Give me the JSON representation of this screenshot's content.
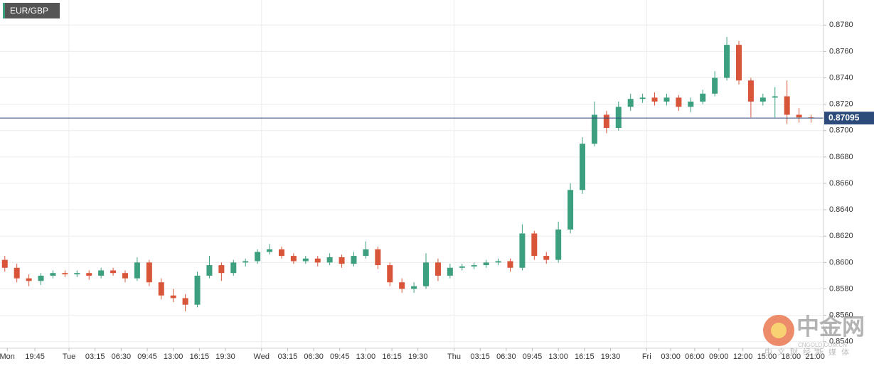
{
  "chart_data": {
    "type": "candlestick",
    "symbol": "EUR/GBP",
    "x": [
      16,
      17.5,
      19,
      20.5,
      22,
      23.5,
      25,
      26.5,
      28,
      29.5,
      31,
      32.5,
      34,
      35.5,
      37,
      38.5,
      40,
      41.5,
      43,
      44.5,
      46,
      47.5,
      49,
      50.5,
      52,
      53.5,
      55,
      56.5,
      58,
      59.5,
      61,
      62.5,
      64,
      65.5,
      67,
      68.5,
      70,
      71.5,
      73,
      74.5,
      76,
      77.5,
      79,
      80.5,
      82,
      83.5,
      85,
      86.5,
      88,
      89.5,
      91,
      92.5,
      94,
      95.5,
      97,
      98.5,
      100,
      101.5,
      103,
      104.5,
      106,
      107.5,
      109,
      110.5,
      112,
      113.5,
      115,
      116.5
    ],
    "open": [
      0.8602,
      0.8596,
      0.8588,
      0.8586,
      0.859,
      0.8592,
      0.8591,
      0.8592,
      0.859,
      0.8594,
      0.8592,
      0.8588,
      0.86,
      0.8585,
      0.8575,
      0.8573,
      0.8568,
      0.859,
      0.8598,
      0.8592,
      0.86,
      0.8601,
      0.8608,
      0.861,
      0.8605,
      0.8601,
      0.8603,
      0.86,
      0.8604,
      0.8599,
      0.8605,
      0.861,
      0.8598,
      0.8585,
      0.858,
      0.8582,
      0.86,
      0.859,
      0.8596,
      0.8597,
      0.8598,
      0.86,
      0.8601,
      0.8596,
      0.8622,
      0.8605,
      0.8602,
      0.8625,
      0.8655,
      0.869,
      0.8712,
      0.8702,
      0.8718,
      0.8724,
      0.8725,
      0.8722,
      0.8725,
      0.8718,
      0.8722,
      0.8728,
      0.874,
      0.8765,
      0.8738,
      0.8722,
      0.8725,
      0.8726,
      0.8712,
      0.871
    ],
    "high": [
      0.8605,
      0.8599,
      0.8591,
      0.8592,
      0.8594,
      0.8594,
      0.8594,
      0.8594,
      0.8596,
      0.8596,
      0.8594,
      0.8604,
      0.8602,
      0.8588,
      0.858,
      0.8576,
      0.8593,
      0.8605,
      0.86,
      0.8602,
      0.8603,
      0.861,
      0.8614,
      0.8612,
      0.8607,
      0.8605,
      0.8605,
      0.8607,
      0.8606,
      0.8608,
      0.8616,
      0.8612,
      0.86,
      0.8588,
      0.8585,
      0.8607,
      0.8603,
      0.8599,
      0.8599,
      0.86,
      0.8602,
      0.8603,
      0.8603,
      0.8629,
      0.8624,
      0.8608,
      0.8631,
      0.866,
      0.8695,
      0.8722,
      0.8715,
      0.8722,
      0.8728,
      0.8728,
      0.8729,
      0.8728,
      0.8727,
      0.8725,
      0.8731,
      0.8745,
      0.8771,
      0.8768,
      0.874,
      0.8728,
      0.8733,
      0.8738,
      0.8717,
      0.8712
    ],
    "low": [
      0.8593,
      0.8585,
      0.8582,
      0.8583,
      0.8588,
      0.8589,
      0.8589,
      0.8587,
      0.8588,
      0.859,
      0.8585,
      0.8586,
      0.8582,
      0.8572,
      0.857,
      0.8563,
      0.8566,
      0.8588,
      0.8586,
      0.859,
      0.8597,
      0.8599,
      0.8606,
      0.8603,
      0.8599,
      0.8599,
      0.8597,
      0.8598,
      0.8596,
      0.8597,
      0.8603,
      0.8595,
      0.8582,
      0.8577,
      0.8577,
      0.858,
      0.8586,
      0.8588,
      0.8594,
      0.8595,
      0.8596,
      0.8598,
      0.8593,
      0.8594,
      0.8602,
      0.8599,
      0.86,
      0.8622,
      0.8652,
      0.8688,
      0.8698,
      0.87,
      0.8715,
      0.8721,
      0.8719,
      0.8719,
      0.8715,
      0.8714,
      0.872,
      0.8726,
      0.8738,
      0.8735,
      0.871,
      0.8719,
      0.871,
      0.8705,
      0.8706,
      0.8706
    ],
    "close": [
      0.8596,
      0.8588,
      0.8586,
      0.859,
      0.8592,
      0.8591,
      0.8592,
      0.859,
      0.8594,
      0.8592,
      0.8588,
      0.86,
      0.8585,
      0.8575,
      0.8573,
      0.8568,
      0.859,
      0.8598,
      0.8592,
      0.86,
      0.8601,
      0.8608,
      0.861,
      0.8605,
      0.8601,
      0.8603,
      0.86,
      0.8604,
      0.8599,
      0.8605,
      0.861,
      0.8598,
      0.8585,
      0.858,
      0.8582,
      0.86,
      0.859,
      0.8596,
      0.8597,
      0.8598,
      0.86,
      0.8601,
      0.8596,
      0.8622,
      0.8605,
      0.8602,
      0.8625,
      0.8655,
      0.869,
      0.8712,
      0.8702,
      0.8718,
      0.8724,
      0.8725,
      0.8722,
      0.8725,
      0.8718,
      0.8722,
      0.8728,
      0.874,
      0.8765,
      0.8738,
      0.8722,
      0.8725,
      0.8726,
      0.8712,
      0.871,
      0.87095
    ],
    "up_color": "#3c9f7f",
    "down_color": "#d9553a",
    "xlim": [
      15.4,
      118.05
    ],
    "xticks": [
      {
        "value": 16.3,
        "label": "Mon"
      },
      {
        "value": 19.75,
        "label": "19:45"
      },
      {
        "value": 24,
        "label": "Tue"
      },
      {
        "value": 27.25,
        "label": "03:15"
      },
      {
        "value": 30.5,
        "label": "06:30"
      },
      {
        "value": 33.75,
        "label": "09:45"
      },
      {
        "value": 37,
        "label": "13:00"
      },
      {
        "value": 40.25,
        "label": "16:15"
      },
      {
        "value": 43.5,
        "label": "19:30"
      },
      {
        "value": 48,
        "label": "Wed"
      },
      {
        "value": 51.25,
        "label": "03:15"
      },
      {
        "value": 54.5,
        "label": "06:30"
      },
      {
        "value": 57.75,
        "label": "09:45"
      },
      {
        "value": 61,
        "label": "13:00"
      },
      {
        "value": 64.25,
        "label": "16:15"
      },
      {
        "value": 67.5,
        "label": "19:30"
      },
      {
        "value": 72,
        "label": "Thu"
      },
      {
        "value": 75.25,
        "label": "03:15"
      },
      {
        "value": 78.5,
        "label": "06:30"
      },
      {
        "value": 81.75,
        "label": "09:45"
      },
      {
        "value": 85,
        "label": "13:00"
      },
      {
        "value": 88.25,
        "label": "16:15"
      },
      {
        "value": 91.5,
        "label": "19:30"
      },
      {
        "value": 96,
        "label": "Fri"
      },
      {
        "value": 99,
        "label": "03:00"
      },
      {
        "value": 102,
        "label": "06:00"
      },
      {
        "value": 105,
        "label": "09:00"
      },
      {
        "value": 108,
        "label": "12:00"
      },
      {
        "value": 111,
        "label": "15:00"
      },
      {
        "value": 114,
        "label": "18:00"
      },
      {
        "value": 117,
        "label": "21:00"
      }
    ],
    "ylim": [
      0.8535,
      0.8799
    ],
    "yticks": [
      {
        "value": 0.854,
        "label": "0.8540"
      },
      {
        "value": 0.856,
        "label": "0.8560"
      },
      {
        "value": 0.858,
        "label": "0.8580"
      },
      {
        "value": 0.86,
        "label": "0.8600"
      },
      {
        "value": 0.862,
        "label": "0.8620"
      },
      {
        "value": 0.864,
        "label": "0.8640"
      },
      {
        "value": 0.866,
        "label": "0.8660"
      },
      {
        "value": 0.868,
        "label": "0.8680"
      },
      {
        "value": 0.87,
        "label": "0.8700"
      },
      {
        "value": 0.872,
        "label": "0.8720"
      },
      {
        "value": 0.874,
        "label": "0.8740"
      },
      {
        "value": 0.876,
        "label": "0.8760"
      },
      {
        "value": 0.878,
        "label": "0.8780"
      }
    ],
    "last_price": {
      "value": 0.87095,
      "label": "0.87095"
    },
    "grid": true,
    "watermark": {
      "brand": "中金网",
      "domain": "CNGOLD.COM.CN",
      "slogan": "中文财经新媒体"
    }
  }
}
